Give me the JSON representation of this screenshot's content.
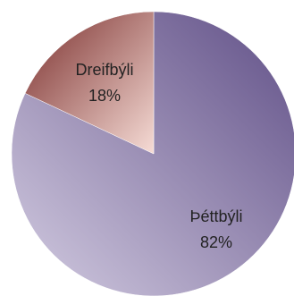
{
  "chart_data": {
    "type": "pie",
    "title": "",
    "legend": "none",
    "slices": [
      {
        "name": "Þéttbýli",
        "value": 82,
        "percent_label": "82%",
        "color_light": "#d4cde2",
        "color_dark": "#5f4e86"
      },
      {
        "name": "Dreifbýli",
        "value": 18,
        "percent_label": "18%",
        "color_light": "#f6dcd6",
        "color_dark": "#7a2e2c"
      }
    ]
  }
}
